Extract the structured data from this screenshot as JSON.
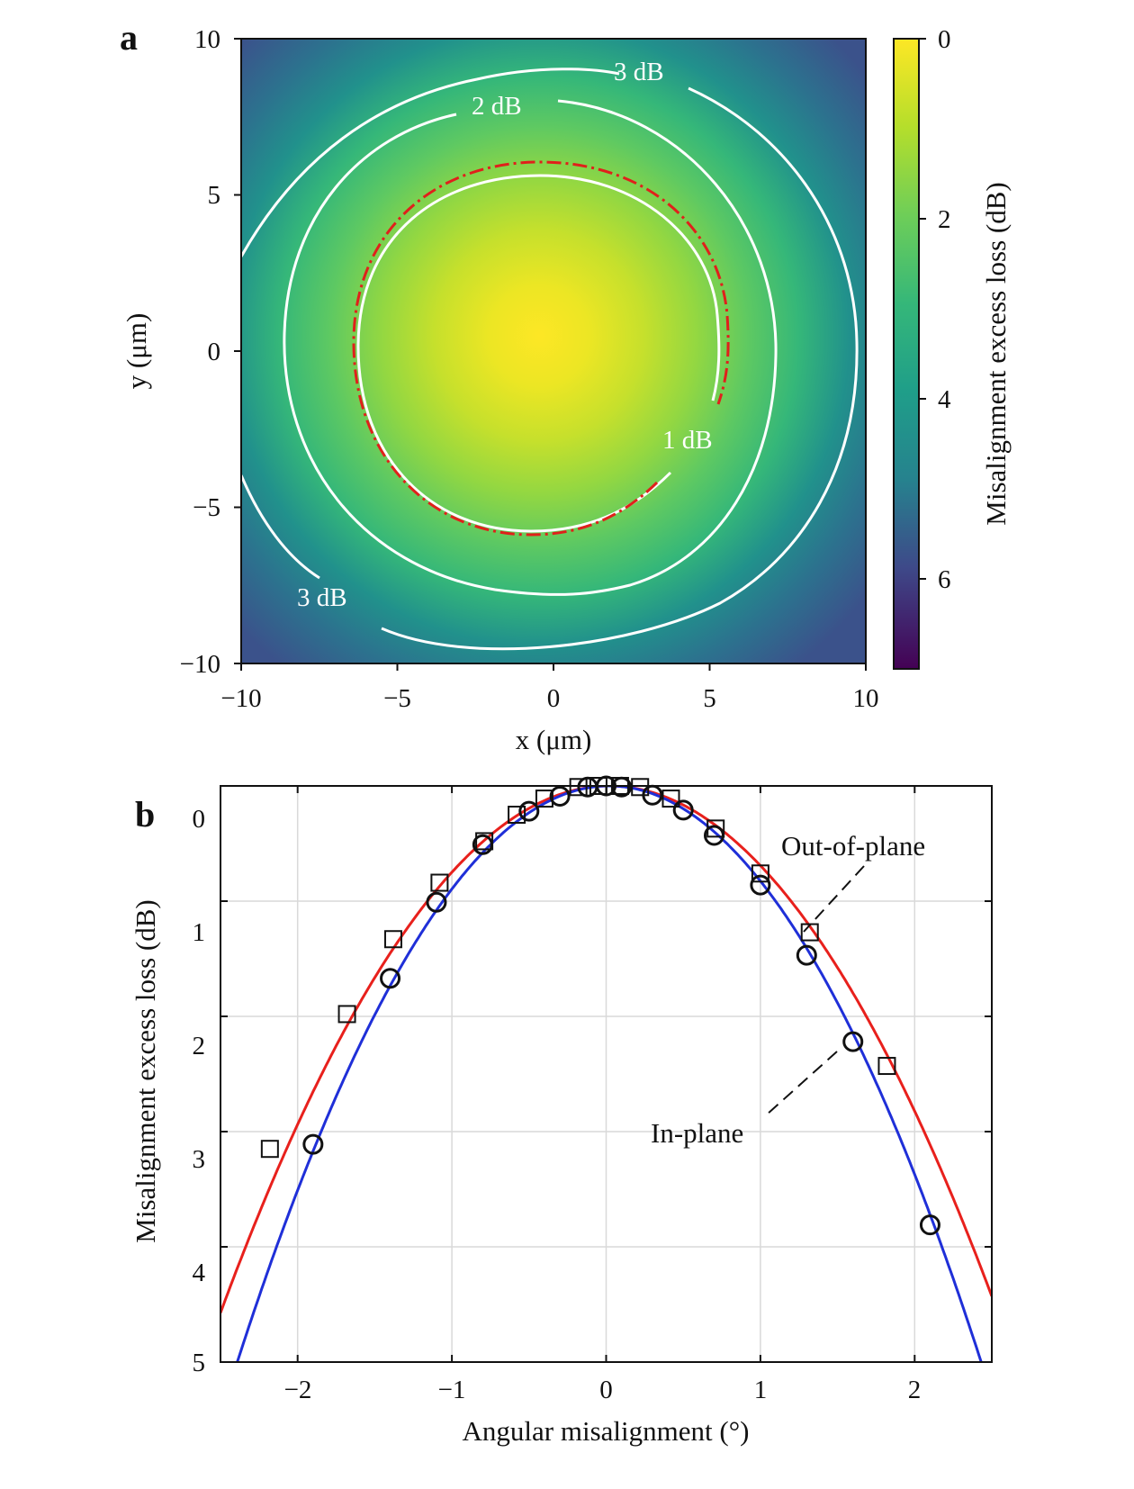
{
  "panel_a": {
    "letter": "a",
    "x_axis_label": "x (μm)",
    "y_axis_label": "y (μm)",
    "colorbar_label": "Misalignment excess loss (dB)",
    "xticks": [
      "−10",
      "−5",
      "0",
      "5",
      "10"
    ],
    "yticks": [
      "10",
      "5",
      "0",
      "−5",
      "−10"
    ],
    "colorbar_ticks": [
      "0",
      "2",
      "4",
      "6"
    ],
    "contour_labels": [
      "3 dB",
      "2 dB",
      "1 dB",
      "3 dB"
    ]
  },
  "panel_b": {
    "letter": "b",
    "x_axis_label": "Angular misalignment (°)",
    "y_axis_label": "Misalignment excess loss (dB)",
    "xticks": [
      "−2",
      "−1",
      "0",
      "1",
      "2"
    ],
    "yticks": [
      "0",
      "1",
      "2",
      "3",
      "4",
      "5"
    ],
    "annotation_out_of_plane": "Out-of-plane",
    "annotation_in_plane": "In-plane"
  },
  "chart_data": [
    {
      "type": "heatmap",
      "x": [
        -10,
        10
      ],
      "y": [
        -10,
        10
      ],
      "xlim": [
        -10,
        10
      ],
      "ylim": [
        -10,
        10
      ],
      "xlabel": "x (μm)",
      "ylabel": "y (μm)",
      "colorbar": {
        "label": "Misalignment excess loss (dB)",
        "range": [
          0,
          7
        ],
        "ticks": [
          0,
          2,
          4,
          6
        ],
        "colormap": "viridis"
      },
      "peak_center": [
        -0.5,
        0.5
      ],
      "contours": [
        {
          "level_db": 1,
          "label": "1 dB",
          "color": "#ffffff"
        },
        {
          "level_db": 2,
          "label": "2 dB",
          "color": "#ffffff"
        },
        {
          "level_db": 3,
          "label": "3 dB",
          "color": "#ffffff"
        }
      ],
      "reference_circle": {
        "center": [
          -0.5,
          0
        ],
        "radius": 6,
        "style": "dash-dot",
        "color": "#e0201b"
      }
    },
    {
      "type": "line",
      "xlim": [
        -2.5,
        2.5
      ],
      "ylim": [
        0,
        5
      ],
      "y_inverted": true,
      "grid": true,
      "xlabel": "Angular misalignment (°)",
      "ylabel": "Misalignment excess loss (dB)",
      "series": [
        {
          "name": "Out-of-plane",
          "kind": "fit",
          "color": "#e8201c",
          "coefficient": 0.72,
          "center": 0.02
        },
        {
          "name": "In-plane",
          "kind": "fit",
          "color": "#1f2fd8",
          "coefficient": 0.86,
          "center": 0.02
        },
        {
          "name": "Out-of-plane",
          "kind": "measured",
          "marker": "square",
          "x": [
            -2.18,
            -1.68,
            -1.38,
            -1.08,
            -0.79,
            -0.58,
            -0.4,
            -0.18,
            -0.05,
            0.09,
            0.22,
            0.42,
            0.71,
            1.0,
            1.32,
            1.82
          ],
          "y": [
            3.15,
            1.98,
            1.33,
            0.84,
            0.48,
            0.25,
            0.11,
            0.01,
            0.0,
            0.0,
            0.01,
            0.11,
            0.37,
            0.76,
            1.27,
            2.43
          ]
        },
        {
          "name": "In-plane",
          "kind": "measured",
          "marker": "circle",
          "x": [
            -1.9,
            -1.4,
            -1.1,
            -0.8,
            -0.5,
            -0.3,
            -0.12,
            0.0,
            0.1,
            0.3,
            0.5,
            0.7,
            1.0,
            1.3,
            1.6,
            2.1
          ],
          "y": [
            3.11,
            1.67,
            1.01,
            0.51,
            0.22,
            0.09,
            0.01,
            0.0,
            0.01,
            0.08,
            0.21,
            0.43,
            0.86,
            1.47,
            2.22,
            3.81
          ]
        }
      ]
    }
  ]
}
